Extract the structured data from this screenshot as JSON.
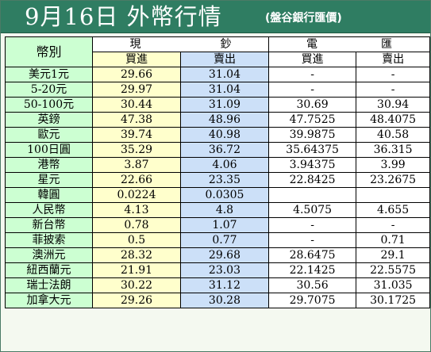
{
  "title": {
    "main": "9月16日 外幣行情",
    "sub": "(盤谷銀行匯價)"
  },
  "header": {
    "currency": "幣別",
    "cash_group": "現鈔",
    "cash_group_chars": [
      "現",
      "鈔"
    ],
    "wire_group_chars": [
      "電",
      "匯"
    ],
    "cash_buy": "買進",
    "cash_sell": "賣出",
    "wire_buy": "買進",
    "wire_sell": "賣出"
  },
  "rows": [
    {
      "name": "美元1元",
      "cash_buy": "29.66",
      "cash_sell": "31.04",
      "wire_buy": "-",
      "wire_sell": "-"
    },
    {
      "name": "5-20元",
      "cash_buy": "29.97",
      "cash_sell": "31.04",
      "wire_buy": "-",
      "wire_sell": "-"
    },
    {
      "name": "50-100元",
      "cash_buy": "30.44",
      "cash_sell": "31.09",
      "wire_buy": "30.69",
      "wire_sell": "30.94"
    },
    {
      "name": "英鎊",
      "cash_buy": "47.38",
      "cash_sell": "48.96",
      "wire_buy": "47.7525",
      "wire_sell": "48.4075"
    },
    {
      "name": "歐元",
      "cash_buy": "39.74",
      "cash_sell": "40.98",
      "wire_buy": "39.9875",
      "wire_sell": "40.58"
    },
    {
      "name": "100日圓",
      "cash_buy": "35.29",
      "cash_sell": "36.72",
      "wire_buy": "35.64375",
      "wire_sell": "36.315"
    },
    {
      "name": "港幣",
      "cash_buy": "3.87",
      "cash_sell": "4.06",
      "wire_buy": "3.94375",
      "wire_sell": "3.99"
    },
    {
      "name": "星元",
      "cash_buy": "22.66",
      "cash_sell": "23.35",
      "wire_buy": "22.8425",
      "wire_sell": "23.2675"
    },
    {
      "name": "韓圓",
      "cash_buy": "0.0224",
      "cash_sell": "0.0305",
      "wire_buy": "",
      "wire_sell": ""
    },
    {
      "name": "人民幣",
      "cash_buy": "4.13",
      "cash_sell": "4.8",
      "wire_buy": "4.5075",
      "wire_sell": "4.655"
    },
    {
      "name": "新台幣",
      "cash_buy": "0.78",
      "cash_sell": "1.07",
      "wire_buy": "-",
      "wire_sell": "-"
    },
    {
      "name": "菲披索",
      "cash_buy": "0.5",
      "cash_sell": "0.77",
      "wire_buy": "-",
      "wire_sell": "0.71"
    },
    {
      "name": "澳洲元",
      "cash_buy": "28.32",
      "cash_sell": "29.68",
      "wire_buy": "28.6475",
      "wire_sell": "29.1"
    },
    {
      "name": "紐西蘭元",
      "cash_buy": "21.91",
      "cash_sell": "23.03",
      "wire_buy": "22.1425",
      "wire_sell": "22.5575"
    },
    {
      "name": "瑞士法朗",
      "cash_buy": "30.22",
      "cash_sell": "31.12",
      "wire_buy": "30.56",
      "wire_sell": "31.035"
    },
    {
      "name": "加拿大元",
      "cash_buy": "29.26",
      "cash_sell": "30.28",
      "wire_buy": "29.7075",
      "wire_sell": "30.1725"
    }
  ],
  "colors": {
    "title_bar": "#2f7d62",
    "name_column": "#ccffd2",
    "cash_buy_column": "#ffffcc",
    "cash_sell_column": "#cce0f8",
    "wire_columns": "#ffffff"
  }
}
